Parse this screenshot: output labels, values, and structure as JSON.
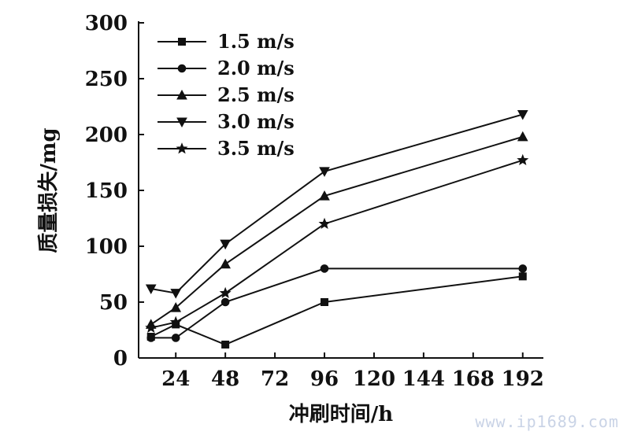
{
  "chart_data": {
    "type": "line",
    "xlabel": "冲刷时间/h",
    "ylabel": "质量损失/mg",
    "xlim": [
      6,
      202
    ],
    "ylim": [
      0,
      300
    ],
    "x_ticks": [
      24,
      48,
      72,
      96,
      120,
      144,
      168,
      192
    ],
    "y_ticks": [
      0,
      50,
      100,
      150,
      200,
      250,
      300
    ],
    "grid": false,
    "legend_position": "top-left",
    "series": [
      {
        "name": "1.5 m/s",
        "marker": "square",
        "x": [
          12,
          24,
          48,
          96,
          192
        ],
        "y": [
          19,
          30,
          12,
          50,
          73
        ]
      },
      {
        "name": "2.0 m/s",
        "marker": "circle",
        "x": [
          12,
          24,
          48,
          96,
          192
        ],
        "y": [
          18,
          18,
          50,
          80,
          80
        ]
      },
      {
        "name": "2.5 m/s",
        "marker": "triangle-up",
        "x": [
          12,
          24,
          48,
          96,
          192
        ],
        "y": [
          30,
          45,
          84,
          145,
          198
        ]
      },
      {
        "name": "3.0 m/s",
        "marker": "triangle-down",
        "x": [
          12,
          24,
          48,
          96,
          192
        ],
        "y": [
          62,
          58,
          102,
          167,
          218
        ]
      },
      {
        "name": "3.5 m/s",
        "marker": "star",
        "x": [
          12,
          24,
          48,
          96,
          192
        ],
        "y": [
          27,
          32,
          58,
          120,
          177
        ]
      }
    ]
  },
  "watermark": "www.ip1689.com"
}
